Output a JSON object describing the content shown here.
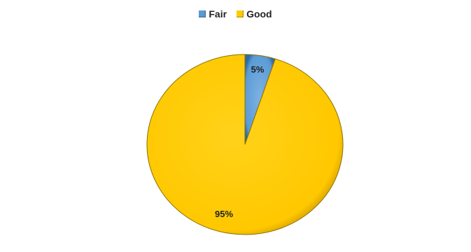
{
  "chart_data": {
    "type": "pie",
    "title": "",
    "categories": [
      "Fair",
      "Good"
    ],
    "values": [
      5,
      95
    ],
    "labels": [
      "5%",
      "95%"
    ],
    "colors": [
      "#5b9bd5",
      "#ffcc00"
    ],
    "legend_placement": "top"
  }
}
